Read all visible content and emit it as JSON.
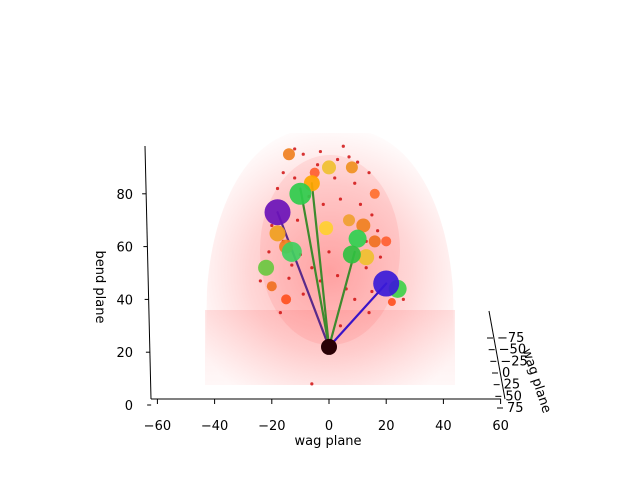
{
  "chart_data": {
    "type": "scatter",
    "title": "",
    "xlabel": "wag plane",
    "ylabel": "bend plane",
    "zlabel": "wag plane",
    "x_ticks": [
      "−60",
      "−40",
      "−20",
      "0",
      "20",
      "40",
      "60"
    ],
    "y_ticks": [
      "0",
      "20",
      "40",
      "60",
      "80"
    ],
    "z_ticks": [
      "−75",
      "−50",
      "−25",
      "0",
      "25",
      "50",
      "75"
    ],
    "xlim": [
      -60,
      60
    ],
    "ylim": [
      0,
      100
    ],
    "zlim": [
      -75,
      75
    ],
    "grid": false,
    "origin": {
      "x": 0,
      "y": 22,
      "color": "#2a0005"
    },
    "branches": [
      {
        "x": -18,
        "y": 73,
        "color": "#5a2a8a"
      },
      {
        "x": -10,
        "y": 82,
        "color": "#3e8a2e"
      },
      {
        "x": -6,
        "y": 84,
        "color": "#3e8a2e"
      },
      {
        "x": 9,
        "y": 58,
        "color": "#3e8a2e"
      },
      {
        "x": 20,
        "y": 46,
        "color": "#3a14c8"
      }
    ],
    "markers": [
      {
        "x": -18,
        "y": 73,
        "size": 13,
        "color": "#6a12b8"
      },
      {
        "x": -10,
        "y": 80,
        "size": 11,
        "color": "#2fcc4c"
      },
      {
        "x": -6,
        "y": 84,
        "size": 8,
        "color": "#ffa500"
      },
      {
        "x": 20,
        "y": 46,
        "size": 13,
        "color": "#3a1ad8"
      },
      {
        "x": 24,
        "y": 44,
        "size": 9,
        "color": "#3fd04a"
      },
      {
        "x": -13,
        "y": 58,
        "size": 10,
        "color": "#40d060"
      },
      {
        "x": -22,
        "y": 52,
        "size": 8,
        "color": "#6ac840"
      },
      {
        "x": -18,
        "y": 65,
        "size": 8,
        "color": "#f0a020"
      },
      {
        "x": -15,
        "y": 60,
        "size": 7,
        "color": "#f08020"
      },
      {
        "x": 10,
        "y": 63,
        "size": 9,
        "color": "#30d050"
      },
      {
        "x": 8,
        "y": 57,
        "size": 9,
        "color": "#30c040"
      },
      {
        "x": 13,
        "y": 56,
        "size": 8,
        "color": "#f0c030"
      },
      {
        "x": 12,
        "y": 68,
        "size": 7,
        "color": "#f08020"
      },
      {
        "x": -1,
        "y": 67,
        "size": 7,
        "color": "#ffd030"
      },
      {
        "x": 0,
        "y": 90,
        "size": 7,
        "color": "#f0c030"
      },
      {
        "x": 8,
        "y": 90,
        "size": 6,
        "color": "#f09020"
      },
      {
        "x": 7,
        "y": 70,
        "size": 6,
        "color": "#f0a030"
      },
      {
        "x": 16,
        "y": 62,
        "size": 6,
        "color": "#f07020"
      },
      {
        "x": -14,
        "y": 95,
        "size": 6,
        "color": "#f08020"
      },
      {
        "x": -5,
        "y": 88,
        "size": 5,
        "color": "#ff6030"
      },
      {
        "x": 16,
        "y": 80,
        "size": 5,
        "color": "#ff7030"
      },
      {
        "x": -20,
        "y": 45,
        "size": 5,
        "color": "#f07020"
      },
      {
        "x": 20,
        "y": 62,
        "size": 5,
        "color": "#ff6030"
      },
      {
        "x": -15,
        "y": 40,
        "size": 5,
        "color": "#ff5020"
      },
      {
        "x": 22,
        "y": 39,
        "size": 4,
        "color": "#ff5020"
      }
    ],
    "scatter_points": [
      {
        "x": -12,
        "y": 97
      },
      {
        "x": -9,
        "y": 95
      },
      {
        "x": -3,
        "y": 96
      },
      {
        "x": 3,
        "y": 93
      },
      {
        "x": 7,
        "y": 94
      },
      {
        "x": 10,
        "y": 92
      },
      {
        "x": 14,
        "y": 88
      },
      {
        "x": -16,
        "y": 88
      },
      {
        "x": -18,
        "y": 82
      },
      {
        "x": -12,
        "y": 86
      },
      {
        "x": -7,
        "y": 79
      },
      {
        "x": -2,
        "y": 76
      },
      {
        "x": 4,
        "y": 78
      },
      {
        "x": 11,
        "y": 76
      },
      {
        "x": 15,
        "y": 72
      },
      {
        "x": 17,
        "y": 66
      },
      {
        "x": -20,
        "y": 68
      },
      {
        "x": -16,
        "y": 62
      },
      {
        "x": -10,
        "y": 57
      },
      {
        "x": -6,
        "y": 52
      },
      {
        "x": -3,
        "y": 47
      },
      {
        "x": 3,
        "y": 49
      },
      {
        "x": 6,
        "y": 44
      },
      {
        "x": 13,
        "y": 52
      },
      {
        "x": 18,
        "y": 56
      },
      {
        "x": -21,
        "y": 58
      },
      {
        "x": -14,
        "y": 48
      },
      {
        "x": -9,
        "y": 42
      },
      {
        "x": 9,
        "y": 40
      },
      {
        "x": 15,
        "y": 43
      },
      {
        "x": 26,
        "y": 40
      },
      {
        "x": -24,
        "y": 47
      },
      {
        "x": 2,
        "y": 86
      },
      {
        "x": -4,
        "y": 91
      },
      {
        "x": 5,
        "y": 98
      },
      {
        "x": 9,
        "y": 84
      },
      {
        "x": -11,
        "y": 70
      },
      {
        "x": 13,
        "y": 62
      },
      {
        "x": -13,
        "y": 53
      },
      {
        "x": 0,
        "y": 58
      },
      {
        "x": 14,
        "y": 35
      },
      {
        "x": -17,
        "y": 35
      },
      {
        "x": 4,
        "y": 30
      },
      {
        "x": -6,
        "y": 8
      }
    ],
    "density_region": {
      "color": "#ff3b3b"
    }
  }
}
